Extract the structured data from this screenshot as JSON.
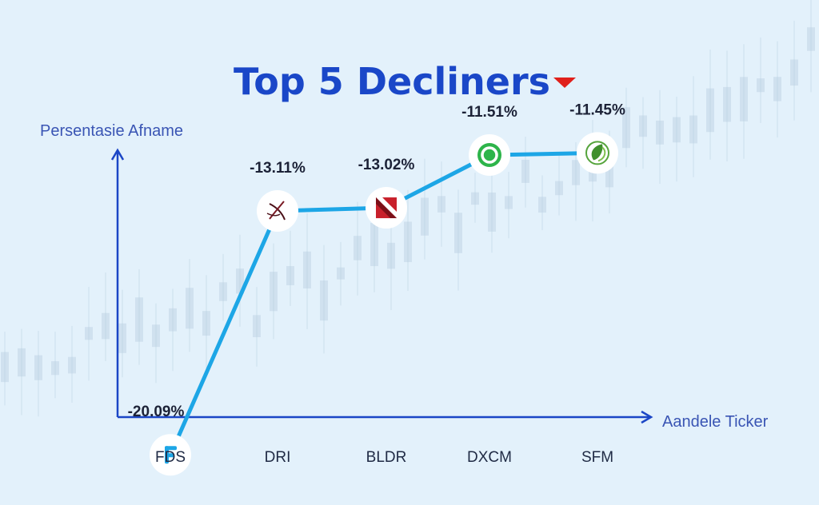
{
  "chart_data": {
    "type": "line",
    "title": "Top 5 Decliners",
    "ylabel": "Persentasie Afname",
    "xlabel": "Aandele Ticker",
    "categories": [
      "FDS",
      "DRI",
      "BLDR",
      "DXCM",
      "SFM"
    ],
    "values": [
      -20.09,
      -13.11,
      -13.02,
      -11.51,
      -11.45
    ],
    "data_labels": [
      "-20.09%",
      "-13.11%",
      "-13.02%",
      "-11.51%",
      "-11.45%"
    ],
    "ylim": [
      -21,
      -10
    ],
    "grid": false,
    "legend": "none",
    "markers": [
      "fds-logo-icon",
      "dri-logo-icon",
      "bldr-logo-icon",
      "dxcm-logo-icon",
      "sfm-logo-icon"
    ]
  },
  "colors": {
    "background": "#e3f1fb",
    "title": "#1a47c8",
    "axis": "#1b46c6",
    "line": "#1da6e6",
    "down_arrow": "#e0201b",
    "candles": "#b9cfe0"
  }
}
